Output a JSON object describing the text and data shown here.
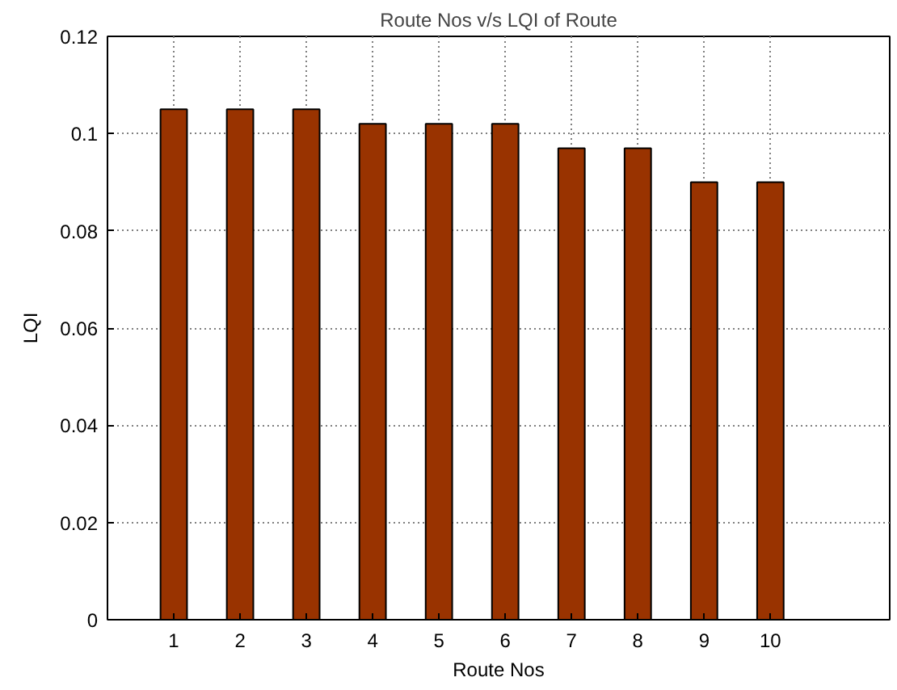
{
  "chart_data": {
    "type": "bar",
    "title": "Route Nos v/s LQI of Route",
    "xlabel": "Route Nos",
    "ylabel": "LQI",
    "x": [
      1,
      2,
      3,
      4,
      5,
      6,
      7,
      8,
      9,
      10
    ],
    "values": [
      0.105,
      0.105,
      0.105,
      0.102,
      0.102,
      0.102,
      0.097,
      0.097,
      0.09,
      0.09
    ],
    "color": "#993300",
    "xlim": [
      0,
      11.8
    ],
    "xticks": [
      1,
      2,
      3,
      4,
      5,
      6,
      7,
      8,
      9,
      10
    ],
    "ylim": [
      0,
      0.12
    ],
    "yticks": [
      0,
      0.02,
      0.04,
      0.06,
      0.08,
      0.1,
      0.12
    ],
    "grid": true
  }
}
